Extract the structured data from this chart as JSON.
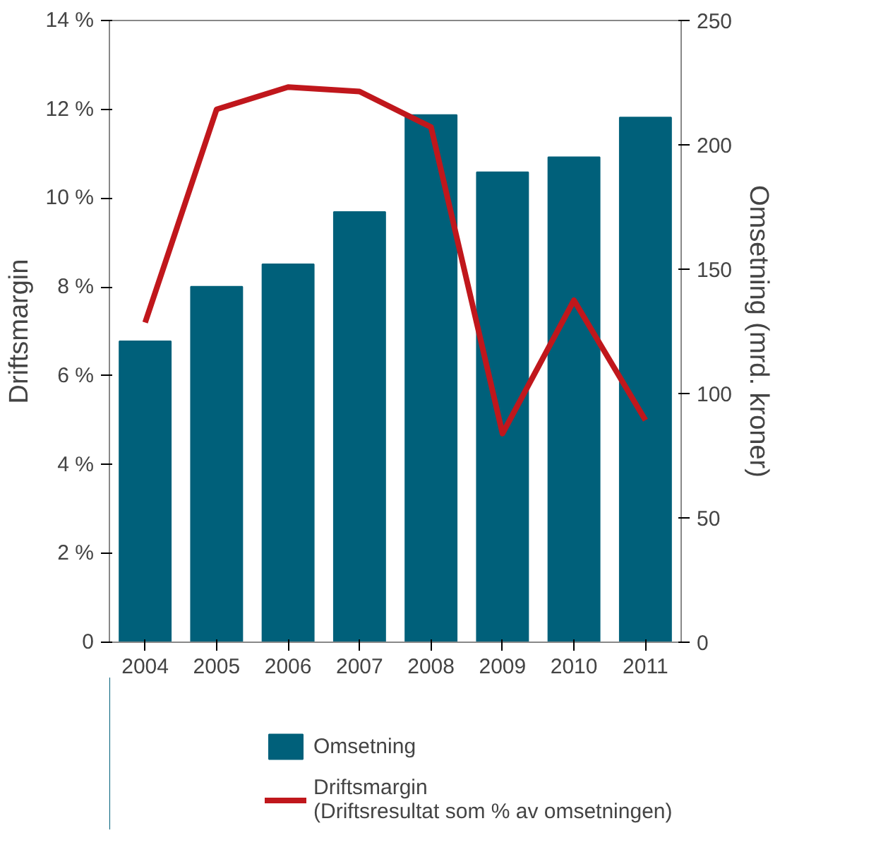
{
  "chart_data": {
    "type": "bar",
    "categories": [
      "2004",
      "2005",
      "2006",
      "2007",
      "2008",
      "2009",
      "2010",
      "2011"
    ],
    "ylabel": "Driftsmargin",
    "y2label": "Omsetning (mrd. kroner)",
    "ylim": [
      0,
      14
    ],
    "yticks": [
      {
        "value": 0,
        "label": "0"
      },
      {
        "value": 2,
        "label": "2 %"
      },
      {
        "value": 4,
        "label": "4 %"
      },
      {
        "value": 6,
        "label": "6 %"
      },
      {
        "value": 8,
        "label": "8 %"
      },
      {
        "value": 10,
        "label": "10 %"
      },
      {
        "value": 12,
        "label": "12 %"
      },
      {
        "value": 14,
        "label": "14 %"
      }
    ],
    "y2lim": [
      0,
      250
    ],
    "y2ticks": [
      0,
      50,
      100,
      150,
      200,
      250
    ],
    "series": [
      {
        "name": "Omsetning",
        "axis": "y2",
        "color": "#00607a",
        "values": [
          121,
          143,
          152,
          173,
          212,
          189,
          195,
          211
        ]
      },
      {
        "name": "Driftsmargin\n(Driftsresultat som % av omsetningen)",
        "type": "line",
        "color": "#c0171c",
        "values": [
          7.2,
          12.0,
          12.5,
          12.4,
          11.6,
          4.7,
          7.7,
          5.0
        ]
      }
    ],
    "grid": false,
    "legend": "bottom"
  }
}
